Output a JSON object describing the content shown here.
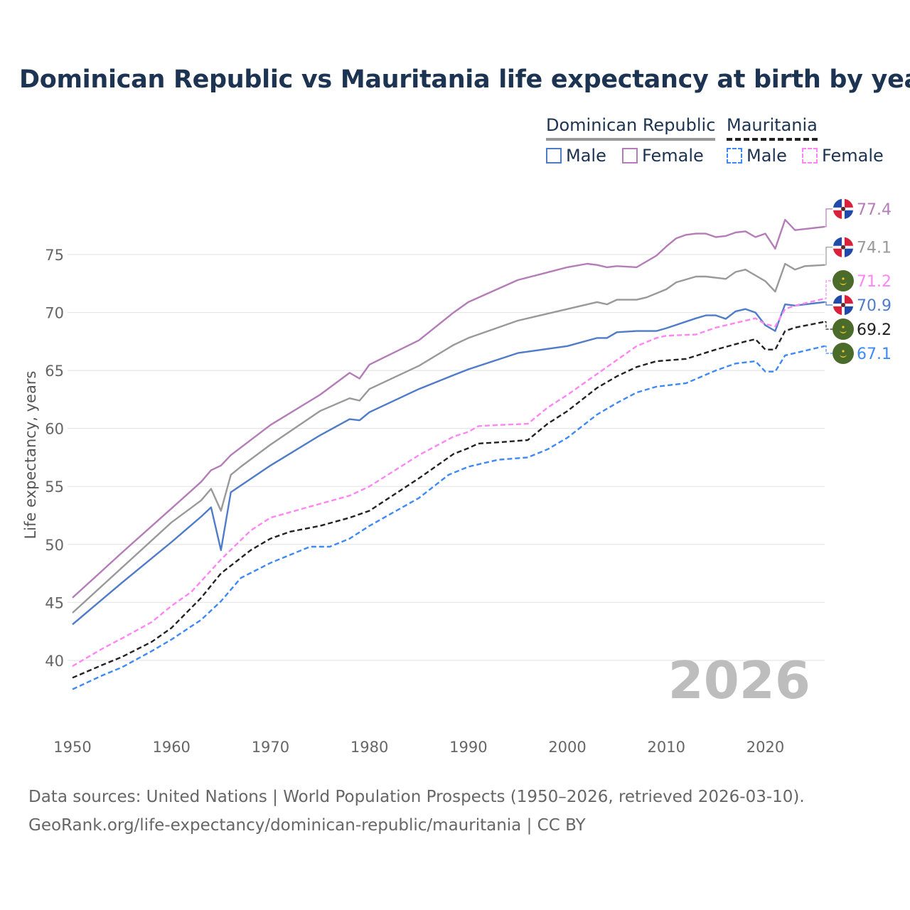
{
  "chart_data": {
    "type": "line",
    "title": "Dominican Republic vs Mauritania life expectancy at birth by year",
    "xlabel": "",
    "ylabel": "Life expectancy, years",
    "xlim": [
      1950,
      2026
    ],
    "ylim": [
      35.5,
      79
    ],
    "x_ticks": [
      1950,
      1960,
      1970,
      1980,
      1990,
      2000,
      2010,
      2020
    ],
    "y_ticks": [
      40,
      45,
      50,
      55,
      60,
      65,
      70,
      75
    ],
    "grid": true,
    "watermark_year": "2026",
    "legend": {
      "placement": "top-right",
      "groups": [
        {
          "label": "Dominican Republic",
          "style": "solid",
          "color": "#999999"
        },
        {
          "label": "Mauritania",
          "style": "dashed",
          "color": "#222222"
        }
      ],
      "items": [
        {
          "label": "Male",
          "style": "solid",
          "color": "#4f7cc9"
        },
        {
          "label": "Female",
          "style": "solid",
          "color": "#b57db8"
        },
        {
          "label": "Male",
          "style": "dashed",
          "color": "#3d8af7"
        },
        {
          "label": "Female",
          "style": "dashed",
          "color": "#ff85f5"
        }
      ]
    },
    "series": [
      {
        "name": "Dominican Republic Female",
        "country": "dr",
        "dashed": false,
        "color": "#b57db8",
        "end_label": "77.4",
        "points": [
          [
            1950,
            45.4
          ],
          [
            1955,
            49.3
          ],
          [
            1960,
            53.1
          ],
          [
            1963,
            55.4
          ],
          [
            1964,
            56.4
          ],
          [
            1965,
            56.8
          ],
          [
            1966,
            57.7
          ],
          [
            1970,
            60.3
          ],
          [
            1975,
            62.9
          ],
          [
            1978,
            64.8
          ],
          [
            1979,
            64.3
          ],
          [
            1980,
            65.5
          ],
          [
            1985,
            67.6
          ],
          [
            1988.5,
            70.0
          ],
          [
            1990,
            70.9
          ],
          [
            1995,
            72.8
          ],
          [
            2000,
            73.9
          ],
          [
            2002,
            74.2
          ],
          [
            2003,
            74.1
          ],
          [
            2004,
            73.9
          ],
          [
            2005,
            74.0
          ],
          [
            2007,
            73.9
          ],
          [
            2009,
            74.9
          ],
          [
            2010,
            75.7
          ],
          [
            2011,
            76.4
          ],
          [
            2012,
            76.7
          ],
          [
            2013,
            76.8
          ],
          [
            2014,
            76.8
          ],
          [
            2015,
            76.5
          ],
          [
            2016,
            76.6
          ],
          [
            2017,
            76.9
          ],
          [
            2018,
            77.0
          ],
          [
            2019,
            76.5
          ],
          [
            2020,
            76.8
          ],
          [
            2021,
            75.5
          ],
          [
            2022,
            78.0
          ],
          [
            2023,
            77.1
          ],
          [
            2025,
            77.3
          ],
          [
            2026,
            77.4
          ]
        ]
      },
      {
        "name": "Dominican Republic",
        "country": "dr",
        "dashed": false,
        "color": "#999999",
        "end_label": "74.1",
        "points": [
          [
            1950,
            44.1
          ],
          [
            1955,
            48.0
          ],
          [
            1960,
            51.9
          ],
          [
            1963,
            53.8
          ],
          [
            1964,
            54.8
          ],
          [
            1965,
            52.9
          ],
          [
            1966,
            56.0
          ],
          [
            1967,
            56.7
          ],
          [
            1970,
            58.6
          ],
          [
            1975,
            61.5
          ],
          [
            1978,
            62.6
          ],
          [
            1979,
            62.4
          ],
          [
            1980,
            63.4
          ],
          [
            1985,
            65.4
          ],
          [
            1988.5,
            67.2
          ],
          [
            1990,
            67.8
          ],
          [
            1995,
            69.3
          ],
          [
            2000,
            70.3
          ],
          [
            2003,
            70.9
          ],
          [
            2004,
            70.7
          ],
          [
            2005,
            71.1
          ],
          [
            2007,
            71.1
          ],
          [
            2008,
            71.3
          ],
          [
            2010,
            72.0
          ],
          [
            2011,
            72.6
          ],
          [
            2013,
            73.1
          ],
          [
            2014,
            73.1
          ],
          [
            2016,
            72.9
          ],
          [
            2017,
            73.5
          ],
          [
            2018,
            73.7
          ],
          [
            2019,
            73.2
          ],
          [
            2020,
            72.7
          ],
          [
            2021,
            71.8
          ],
          [
            2022,
            74.2
          ],
          [
            2023,
            73.7
          ],
          [
            2024,
            74.0
          ],
          [
            2026,
            74.1
          ]
        ]
      },
      {
        "name": "Dominican Republic Male",
        "country": "dr",
        "dashed": false,
        "color": "#4f7cc9",
        "end_label": "70.9",
        "points": [
          [
            1950,
            43.1
          ],
          [
            1955,
            46.7
          ],
          [
            1960,
            50.2
          ],
          [
            1963,
            52.4
          ],
          [
            1964,
            53.2
          ],
          [
            1965,
            49.5
          ],
          [
            1966,
            54.5
          ],
          [
            1970,
            56.8
          ],
          [
            1975,
            59.4
          ],
          [
            1978,
            60.8
          ],
          [
            1979,
            60.7
          ],
          [
            1980,
            61.4
          ],
          [
            1985,
            63.4
          ],
          [
            1988.5,
            64.6
          ],
          [
            1990,
            65.1
          ],
          [
            1995,
            66.5
          ],
          [
            2000,
            67.1
          ],
          [
            2003,
            67.8
          ],
          [
            2004,
            67.8
          ],
          [
            2005,
            68.3
          ],
          [
            2007,
            68.4
          ],
          [
            2009,
            68.4
          ],
          [
            2010,
            68.65
          ],
          [
            2013,
            69.5
          ],
          [
            2014,
            69.75
          ],
          [
            2015,
            69.75
          ],
          [
            2016,
            69.45
          ],
          [
            2017,
            70.1
          ],
          [
            2018,
            70.3
          ],
          [
            2019,
            70.0
          ],
          [
            2020,
            68.9
          ],
          [
            2021,
            68.4
          ],
          [
            2022,
            70.7
          ],
          [
            2023,
            70.6
          ],
          [
            2026,
            70.9
          ]
        ]
      },
      {
        "name": "Mauritania Female",
        "country": "mr",
        "dashed": true,
        "color": "#ff85f5",
        "end_label": "71.2",
        "points": [
          [
            1950,
            39.5
          ],
          [
            1953,
            41.0
          ],
          [
            1955,
            41.9
          ],
          [
            1958,
            43.3
          ],
          [
            1960,
            44.7
          ],
          [
            1962,
            45.9
          ],
          [
            1965,
            48.7
          ],
          [
            1968,
            51.2
          ],
          [
            1970,
            52.3
          ],
          [
            1975,
            53.5
          ],
          [
            1978,
            54.2
          ],
          [
            1980,
            55.0
          ],
          [
            1985,
            57.7
          ],
          [
            1988.5,
            59.3
          ],
          [
            1990,
            59.7
          ],
          [
            1991,
            60.2
          ],
          [
            1993,
            60.3
          ],
          [
            1996,
            60.4
          ],
          [
            1998,
            61.8
          ],
          [
            2000,
            62.9
          ],
          [
            2003,
            64.7
          ],
          [
            2005,
            65.9
          ],
          [
            2007,
            67.1
          ],
          [
            2009,
            67.8
          ],
          [
            2010,
            68.0
          ],
          [
            2013,
            68.1
          ],
          [
            2015,
            68.7
          ],
          [
            2017,
            69.1
          ],
          [
            2019,
            69.5
          ],
          [
            2020,
            69.0
          ],
          [
            2021,
            68.8
          ],
          [
            2022,
            70.3
          ],
          [
            2023,
            70.6
          ],
          [
            2026,
            71.2
          ]
        ]
      },
      {
        "name": "Mauritania",
        "country": "mr",
        "dashed": true,
        "color": "#222222",
        "end_label": "69.2",
        "points": [
          [
            1950,
            38.5
          ],
          [
            1953,
            39.6
          ],
          [
            1955,
            40.3
          ],
          [
            1958,
            41.6
          ],
          [
            1960,
            42.8
          ],
          [
            1963,
            45.4
          ],
          [
            1965,
            47.5
          ],
          [
            1968,
            49.5
          ],
          [
            1970,
            50.5
          ],
          [
            1972,
            51.1
          ],
          [
            1975,
            51.6
          ],
          [
            1978,
            52.3
          ],
          [
            1980,
            52.9
          ],
          [
            1985,
            55.7
          ],
          [
            1988.5,
            57.8
          ],
          [
            1990,
            58.3
          ],
          [
            1991,
            58.7
          ],
          [
            1993,
            58.8
          ],
          [
            1996,
            59.0
          ],
          [
            1998,
            60.4
          ],
          [
            2000,
            61.5
          ],
          [
            2003,
            63.5
          ],
          [
            2005,
            64.5
          ],
          [
            2007,
            65.3
          ],
          [
            2009,
            65.8
          ],
          [
            2012,
            66.0
          ],
          [
            2015,
            66.8
          ],
          [
            2018,
            67.5
          ],
          [
            2019,
            67.7
          ],
          [
            2020,
            66.8
          ],
          [
            2021,
            66.8
          ],
          [
            2022,
            68.4
          ],
          [
            2023,
            68.7
          ],
          [
            2026,
            69.2
          ]
        ]
      },
      {
        "name": "Mauritania Male",
        "country": "mr",
        "dashed": true,
        "color": "#3d8af7",
        "end_label": "67.1",
        "points": [
          [
            1950,
            37.5
          ],
          [
            1953,
            38.7
          ],
          [
            1955,
            39.4
          ],
          [
            1958,
            40.8
          ],
          [
            1960,
            41.8
          ],
          [
            1963,
            43.5
          ],
          [
            1965,
            45.1
          ],
          [
            1967,
            47.1
          ],
          [
            1970,
            48.4
          ],
          [
            1972,
            49.1
          ],
          [
            1974,
            49.8
          ],
          [
            1976,
            49.8
          ],
          [
            1978,
            50.5
          ],
          [
            1980,
            51.6
          ],
          [
            1985,
            54.0
          ],
          [
            1988,
            56.0
          ],
          [
            1990,
            56.7
          ],
          [
            1993,
            57.3
          ],
          [
            1996,
            57.5
          ],
          [
            1998,
            58.2
          ],
          [
            2000,
            59.2
          ],
          [
            2003,
            61.2
          ],
          [
            2005,
            62.2
          ],
          [
            2007,
            63.1
          ],
          [
            2009,
            63.6
          ],
          [
            2012,
            63.9
          ],
          [
            2015,
            65.0
          ],
          [
            2017,
            65.6
          ],
          [
            2019,
            65.8
          ],
          [
            2020,
            64.9
          ],
          [
            2021,
            64.9
          ],
          [
            2022,
            66.3
          ],
          [
            2026,
            67.1
          ]
        ]
      }
    ]
  },
  "footer": {
    "line1": "Data sources: United Nations | World Population Prospects (1950–2026, retrieved 2026-03-10).",
    "line2": "GeoRank.org/life-expectancy/dominican-republic/mauritania | CC BY"
  }
}
